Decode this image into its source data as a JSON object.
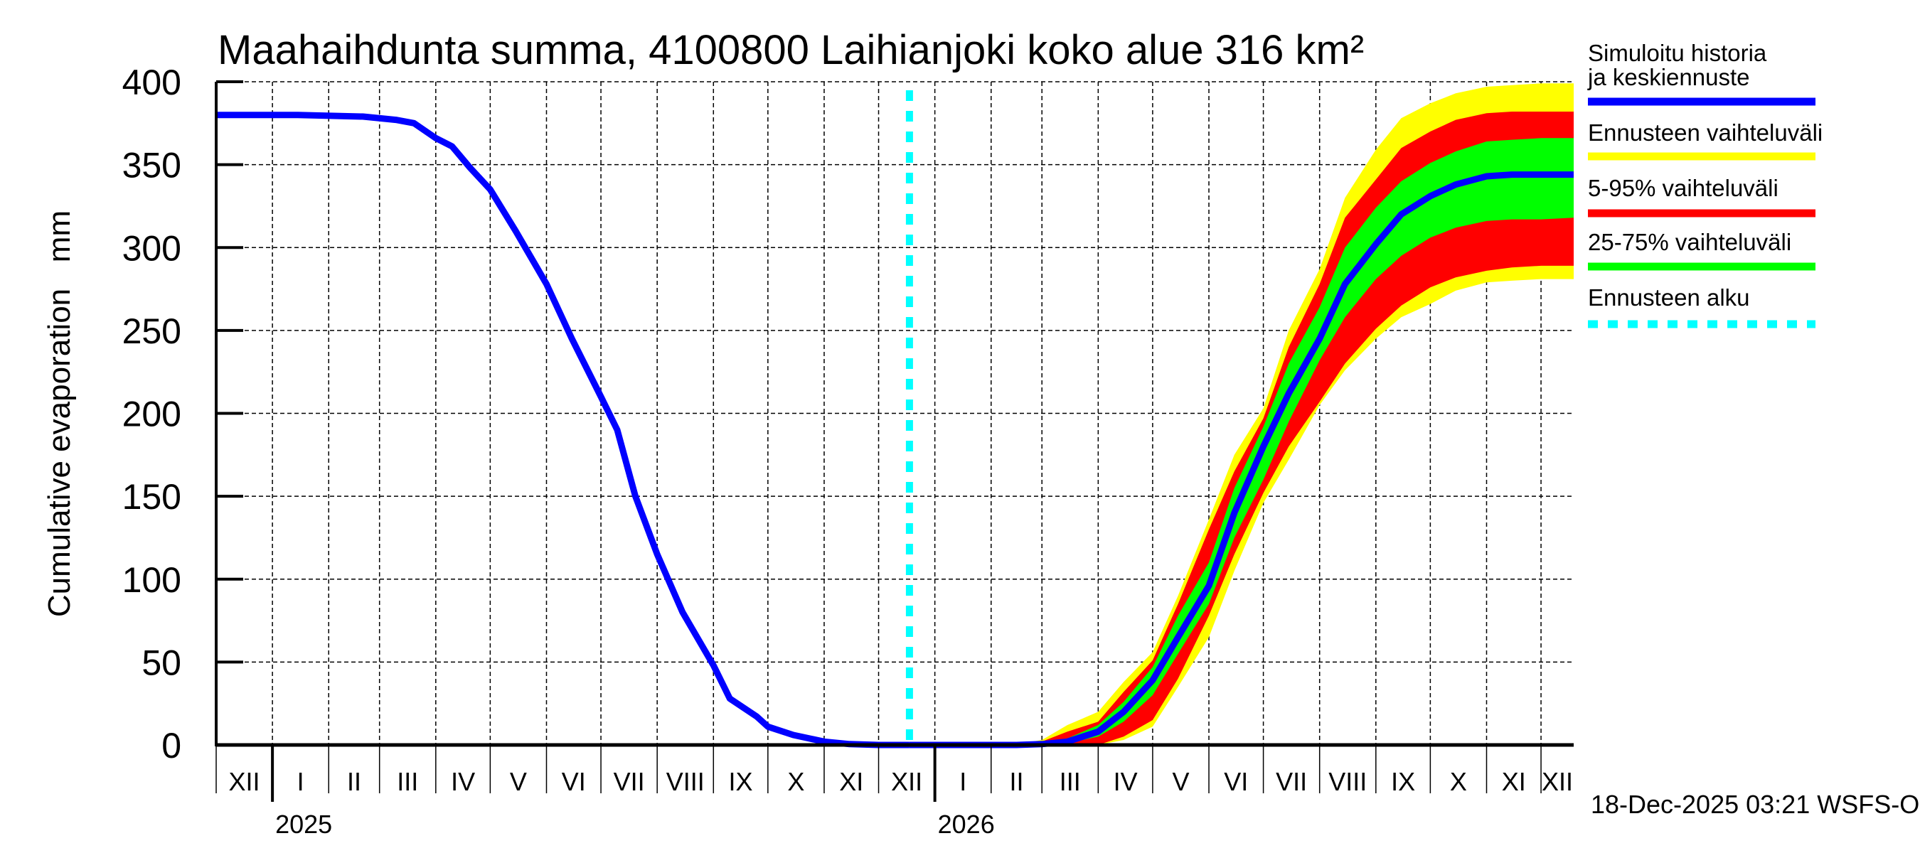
{
  "chart_data": {
    "type": "area",
    "title": "Maahaihdunta summa, 4100800 Laihianjoki koko alue 316 km²",
    "xlabel": "",
    "ylabel": "Cumulative evaporation   mm",
    "ylim": [
      0,
      400
    ],
    "xlim": [
      "2024-12-01",
      "2026-12-19"
    ],
    "yticks": [
      0,
      50,
      100,
      150,
      200,
      250,
      300,
      350,
      400
    ],
    "grid": true,
    "legend_position": "right",
    "month_labels": [
      "XII",
      "I",
      "II",
      "III",
      "IV",
      "V",
      "VI",
      "VII",
      "VIII",
      "IX",
      "X",
      "XI",
      "XII",
      "I",
      "II",
      "III",
      "IV",
      "V",
      "VI",
      "VII",
      "VIII",
      "IX",
      "X",
      "XI",
      "XII"
    ],
    "month_starts": [
      "2024-12-01",
      "2025-01-01",
      "2025-02-01",
      "2025-03-01",
      "2025-04-01",
      "2025-05-01",
      "2025-06-01",
      "2025-07-01",
      "2025-08-01",
      "2025-09-01",
      "2025-10-01",
      "2025-11-01",
      "2025-12-01",
      "2026-01-01",
      "2026-02-01",
      "2026-03-01",
      "2026-04-01",
      "2026-05-01",
      "2026-06-01",
      "2026-07-01",
      "2026-08-01",
      "2026-09-01",
      "2026-10-01",
      "2026-11-01",
      "2026-12-01"
    ],
    "year_labels": [
      {
        "label": "2025",
        "date": "2025-01-01"
      },
      {
        "label": "2026",
        "date": "2026-01-01"
      }
    ],
    "forecast_start": "2025-12-18",
    "history": {
      "name": "Simuloitu historia ja keskiennuste",
      "color": "#0000ff",
      "points": [
        [
          "2024-12-01",
          380
        ],
        [
          "2025-01-15",
          380
        ],
        [
          "2025-02-20",
          379
        ],
        [
          "2025-03-10",
          377
        ],
        [
          "2025-03-20",
          375
        ],
        [
          "2025-04-01",
          366
        ],
        [
          "2025-04-10",
          361
        ],
        [
          "2025-04-20",
          348
        ],
        [
          "2025-05-01",
          335
        ],
        [
          "2025-05-15",
          310
        ],
        [
          "2025-06-01",
          278
        ],
        [
          "2025-06-15",
          245
        ],
        [
          "2025-07-01",
          210
        ],
        [
          "2025-07-10",
          190
        ],
        [
          "2025-07-20",
          150
        ],
        [
          "2025-08-01",
          115
        ],
        [
          "2025-08-15",
          80
        ],
        [
          "2025-09-01",
          48
        ],
        [
          "2025-09-10",
          28
        ],
        [
          "2025-09-25",
          17
        ],
        [
          "2025-10-01",
          11
        ],
        [
          "2025-10-15",
          6
        ],
        [
          "2025-11-01",
          2
        ],
        [
          "2025-11-15",
          0.5
        ],
        [
          "2025-12-01",
          0
        ],
        [
          "2025-12-18",
          0
        ]
      ]
    },
    "forecast": {
      "dates": [
        "2025-12-18",
        "2026-01-15",
        "2026-02-01",
        "2026-02-15",
        "2026-03-01",
        "2026-03-15",
        "2026-04-01",
        "2026-04-15",
        "2026-05-01",
        "2026-05-15",
        "2026-06-01",
        "2026-06-15",
        "2026-07-01",
        "2026-07-15",
        "2026-08-01",
        "2026-08-15",
        "2026-09-01",
        "2026-09-15",
        "2026-10-01",
        "2026-10-15",
        "2026-11-01",
        "2026-11-15",
        "2026-12-01",
        "2026-12-19"
      ],
      "mean": [
        0,
        0,
        0,
        0,
        0.5,
        2,
        8,
        20,
        39,
        65,
        96,
        140,
        180,
        212,
        245,
        278,
        302,
        320,
        331,
        338,
        343,
        344,
        344,
        344
      ],
      "p25": [
        0,
        0,
        0,
        0,
        0.5,
        1,
        5,
        14,
        30,
        55,
        85,
        125,
        160,
        195,
        232,
        258,
        281,
        295,
        306,
        312,
        316,
        317,
        317,
        318
      ],
      "p75": [
        0,
        0,
        0,
        0,
        1,
        4,
        12,
        26,
        47,
        78,
        110,
        155,
        192,
        230,
        264,
        300,
        324,
        340,
        351,
        358,
        364,
        365,
        366,
        366
      ],
      "p05": [
        0,
        0,
        0,
        0,
        0,
        0,
        0,
        5,
        15,
        40,
        78,
        115,
        152,
        180,
        207,
        230,
        251,
        265,
        276,
        282,
        286,
        288,
        289,
        289
      ],
      "p95": [
        0,
        0,
        0,
        0,
        2,
        8,
        14,
        32,
        51,
        85,
        130,
        165,
        197,
        240,
        278,
        318,
        341,
        360,
        370,
        377,
        381,
        382,
        382,
        382
      ],
      "min": [
        0,
        0,
        0,
        0,
        0,
        0,
        0,
        3,
        11,
        35,
        65,
        105,
        146,
        172,
        205,
        226,
        245,
        258,
        266,
        274,
        279,
        280,
        281,
        281
      ],
      "max": [
        0,
        0,
        0,
        0.5,
        3,
        12,
        20,
        38,
        56,
        90,
        136,
        175,
        203,
        250,
        287,
        330,
        359,
        378,
        387,
        393,
        397,
        398,
        399,
        399
      ]
    },
    "legend": [
      {
        "label": "Simuloitu historia ja keskiennuste",
        "color": "#0000ff",
        "style": "solid"
      },
      {
        "label": "Ennusteen vaihteluväli",
        "color": "#ffff00",
        "style": "solid"
      },
      {
        "label": "5-95% vaihteluväli",
        "color": "#ff0000",
        "style": "solid"
      },
      {
        "label": "25-75% vaihteluväli",
        "color": "#00ff00",
        "style": "solid"
      },
      {
        "label": "Ennusteen alku",
        "color": "#00ffff",
        "style": "dotted"
      }
    ],
    "footer": "18-Dec-2025 03:21 WSFS-O"
  },
  "colors": {
    "history": "#0000ff",
    "range": "#ffff00",
    "p5_95": "#ff0000",
    "p25_75": "#00ff00",
    "forecast_start": "#00ffff",
    "axis": "#000000",
    "grid": "#000000"
  }
}
